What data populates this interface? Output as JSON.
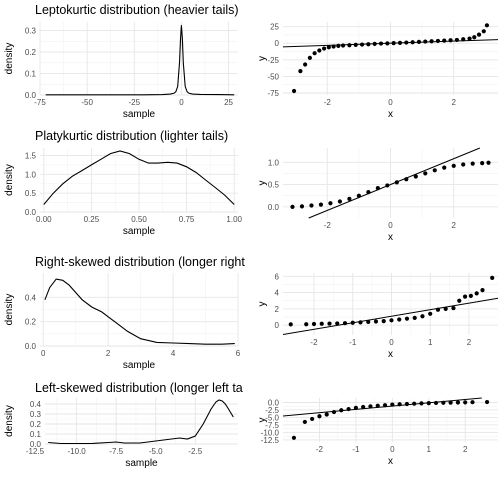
{
  "chart_data": [
    {
      "type": "line",
      "title": "Leptokurtic distribution (heavier tails)",
      "xlabel": "sample",
      "ylabel": "density",
      "xlim": [
        -75,
        30
      ],
      "ylim": [
        0,
        0.34
      ],
      "xticks": [
        -75,
        -50,
        -25,
        0,
        25
      ],
      "xticklabels": [
        "-75",
        "-50",
        "-25",
        "0",
        "25"
      ],
      "yticks": [
        0,
        0.1,
        0.2,
        0.3
      ],
      "yticklabels": [
        "0.0",
        "0.1",
        "0.2",
        "0.3"
      ],
      "grid": true,
      "series": [
        {
          "x": [
            -72,
            -60,
            -40,
            -20,
            -10,
            -6,
            -4,
            -3,
            -2,
            -1,
            -0.5,
            0,
            0.5,
            1,
            2,
            3,
            4,
            6,
            10,
            20,
            28
          ],
          "y": [
            0.001,
            0.001,
            0.001,
            0.001,
            0.002,
            0.004,
            0.008,
            0.015,
            0.04,
            0.15,
            0.26,
            0.325,
            0.26,
            0.15,
            0.04,
            0.015,
            0.008,
            0.004,
            0.003,
            0.002,
            0.001
          ]
        }
      ]
    },
    {
      "type": "scatter",
      "title": "",
      "xlabel": "x",
      "ylabel": "y",
      "xlim": [
        -3.4,
        3.4
      ],
      "ylim": [
        -78,
        32
      ],
      "xticks": [
        -2,
        0,
        2
      ],
      "xticklabels": [
        "-2",
        "0",
        "2"
      ],
      "yticks": [
        -75,
        -50,
        -25,
        0,
        25
      ],
      "yticklabels": [
        "-75",
        "-50",
        "-25",
        "0",
        "25"
      ],
      "grid": true,
      "reference_line": {
        "slope": 1.6,
        "intercept": 0
      },
      "series": [
        {
          "x": [
            -3.05,
            -2.85,
            -2.7,
            -2.55,
            -2.4,
            -2.25,
            -2.1,
            -1.95,
            -1.8,
            -1.65,
            -1.5,
            -1.3,
            -1.1,
            -0.9,
            -0.7,
            -0.5,
            -0.3,
            -0.1,
            0.1,
            0.3,
            0.5,
            0.7,
            0.9,
            1.1,
            1.3,
            1.5,
            1.7,
            1.9,
            2.1,
            2.3,
            2.5,
            2.65,
            2.8,
            2.95,
            3.05
          ],
          "y": [
            -72,
            -42,
            -32,
            -22,
            -15,
            -11,
            -8,
            -6,
            -5,
            -4,
            -3.5,
            -3,
            -2.5,
            -2,
            -1.5,
            -1,
            -0.5,
            -0.2,
            0.2,
            0.5,
            1,
            1.5,
            2,
            2.5,
            3,
            3.5,
            4,
            4.5,
            5,
            6,
            7,
            9,
            13,
            18,
            27
          ]
        }
      ]
    },
    {
      "type": "line",
      "title": "Platykurtic distribution (lighter tails)",
      "xlabel": "sample",
      "ylabel": "density",
      "xlim": [
        -0.02,
        1.02
      ],
      "ylim": [
        0,
        1.7
      ],
      "xticks": [
        0,
        0.25,
        0.5,
        0.75,
        1
      ],
      "xticklabels": [
        "0.00",
        "0.25",
        "0.50",
        "0.75",
        "1.00"
      ],
      "yticks": [
        0,
        0.5,
        1,
        1.5
      ],
      "yticklabels": [
        "0.0",
        "0.5",
        "1.0",
        "1.5"
      ],
      "grid": true,
      "series": [
        {
          "x": [
            0,
            0.05,
            0.1,
            0.15,
            0.2,
            0.25,
            0.3,
            0.35,
            0.4,
            0.45,
            0.5,
            0.55,
            0.6,
            0.65,
            0.7,
            0.75,
            0.8,
            0.85,
            0.9,
            0.95,
            1
          ],
          "y": [
            0.2,
            0.5,
            0.75,
            0.95,
            1.1,
            1.25,
            1.4,
            1.55,
            1.62,
            1.55,
            1.4,
            1.3,
            1.3,
            1.32,
            1.3,
            1.2,
            1.05,
            0.85,
            0.65,
            0.45,
            0.2
          ]
        }
      ]
    },
    {
      "type": "scatter",
      "title": "",
      "xlabel": "x",
      "ylabel": "y",
      "xlim": [
        -3.4,
        3.4
      ],
      "ylim": [
        -0.25,
        1.32
      ],
      "xticks": [
        -2,
        0,
        2
      ],
      "xticklabels": [
        "-2",
        "0",
        "2"
      ],
      "yticks": [
        0,
        0.5,
        1
      ],
      "yticklabels": [
        "0.0",
        "0.5",
        "1.0"
      ],
      "grid": true,
      "reference_line": {
        "slope": 0.29,
        "intercept": 0.5
      },
      "series": [
        {
          "x": [
            -3.1,
            -2.8,
            -2.5,
            -2.2,
            -1.9,
            -1.6,
            -1.3,
            -1.0,
            -0.7,
            -0.4,
            -0.1,
            0.2,
            0.5,
            0.8,
            1.1,
            1.4,
            1.7,
            2.0,
            2.3,
            2.6,
            2.9,
            3.1
          ],
          "y": [
            0.0,
            0.01,
            0.03,
            0.05,
            0.08,
            0.12,
            0.18,
            0.25,
            0.33,
            0.42,
            0.48,
            0.55,
            0.62,
            0.68,
            0.75,
            0.82,
            0.88,
            0.92,
            0.95,
            0.97,
            0.98,
            0.99
          ]
        }
      ]
    },
    {
      "type": "line",
      "title": "Right-skewed distribution (longer right",
      "xlabel": "sample",
      "ylabel": "density",
      "xlim": [
        -0.1,
        6
      ],
      "ylim": [
        0,
        0.6
      ],
      "xticks": [
        0,
        2,
        4,
        6
      ],
      "xticklabels": [
        "0",
        "2",
        "4",
        "6"
      ],
      "yticks": [
        0,
        0.2,
        0.4
      ],
      "yticklabels": [
        "0.0",
        "0.2",
        "0.4"
      ],
      "grid": true,
      "series": [
        {
          "x": [
            0.05,
            0.2,
            0.4,
            0.6,
            0.8,
            1.0,
            1.2,
            1.5,
            1.8,
            2.0,
            2.3,
            2.6,
            3.0,
            3.5,
            4.0,
            4.5,
            5.0,
            5.5,
            5.9
          ],
          "y": [
            0.38,
            0.48,
            0.55,
            0.54,
            0.5,
            0.44,
            0.38,
            0.32,
            0.28,
            0.24,
            0.18,
            0.12,
            0.06,
            0.03,
            0.025,
            0.02,
            0.015,
            0.015,
            0.02
          ]
        }
      ]
    },
    {
      "type": "scatter",
      "title": "",
      "xlabel": "x",
      "ylabel": "y",
      "xlim": [
        -2.8,
        2.75
      ],
      "ylim": [
        -1.2,
        6.4
      ],
      "xticks": [
        -2,
        -1,
        0,
        1,
        2
      ],
      "xticklabels": [
        "-2",
        "-1",
        "0",
        "1",
        "2"
      ],
      "yticks": [
        0,
        2,
        4,
        6
      ],
      "yticklabels": [
        "0",
        "2",
        "4",
        "6"
      ],
      "grid": true,
      "reference_line": {
        "slope": 0.8,
        "intercept": 1.1
      },
      "series": [
        {
          "x": [
            -2.6,
            -2.2,
            -2.0,
            -1.8,
            -1.6,
            -1.4,
            -1.2,
            -1.0,
            -0.8,
            -0.6,
            -0.4,
            -0.2,
            0,
            0.2,
            0.4,
            0.6,
            0.8,
            1.0,
            1.2,
            1.4,
            1.6,
            1.75,
            1.9,
            2.05,
            2.2,
            2.35,
            2.6
          ],
          "y": [
            0.1,
            0.12,
            0.15,
            0.18,
            0.2,
            0.22,
            0.25,
            0.3,
            0.35,
            0.4,
            0.45,
            0.5,
            0.6,
            0.7,
            0.8,
            0.9,
            1.1,
            1.4,
            1.9,
            2.0,
            2.1,
            3.0,
            3.5,
            3.6,
            3.9,
            4.3,
            5.8
          ]
        }
      ]
    },
    {
      "type": "line",
      "title": "Left-skewed distribution (longer left ta",
      "xlabel": "sample",
      "ylabel": "density",
      "xlim": [
        -12,
        0.2
      ],
      "ylim": [
        0,
        0.46
      ],
      "xticks": [
        -12.5,
        -10,
        -7.5,
        -5,
        -2.5
      ],
      "xticklabels": [
        "-12.5",
        "-10.0",
        "-7.5",
        "-5.0",
        "-2.5"
      ],
      "yticks": [
        0,
        0.1,
        0.2,
        0.3,
        0.4
      ],
      "yticklabels": [
        "0.0",
        "0.1",
        "0.2",
        "0.3",
        "0.4"
      ],
      "grid": true,
      "series": [
        {
          "x": [
            -11.8,
            -11,
            -10,
            -9,
            -8,
            -7.5,
            -7,
            -6,
            -5,
            -4,
            -3.5,
            -3,
            -2.5,
            -2,
            -1.5,
            -1.2,
            -1,
            -0.8,
            -0.6,
            -0.4,
            -0.1
          ],
          "y": [
            0.015,
            0.005,
            0.005,
            0.006,
            0.015,
            0.02,
            0.01,
            0.01,
            0.03,
            0.05,
            0.06,
            0.05,
            0.08,
            0.2,
            0.35,
            0.42,
            0.44,
            0.43,
            0.4,
            0.35,
            0.27
          ]
        }
      ]
    },
    {
      "type": "scatter",
      "title": "",
      "xlabel": "x",
      "ylabel": "y",
      "xlim": [
        -3.0,
        2.9
      ],
      "ylim": [
        -13.2,
        1.5
      ],
      "xticks": [
        -2,
        -1,
        0,
        1,
        2
      ],
      "xticklabels": [
        "-2",
        "-1",
        "0",
        "1",
        "2"
      ],
      "yticks": [
        -12.5,
        -10,
        -7.5,
        -5,
        -2.5,
        0
      ],
      "yticklabels": [
        "-12.5",
        "-10.0",
        "-7.5",
        "-5.0",
        "-2.5",
        "0.0"
      ],
      "grid": true,
      "reference_line": {
        "slope": 1.1,
        "intercept": -1.2
      },
      "series": [
        {
          "x": [
            -2.7,
            -2.4,
            -2.2,
            -2.0,
            -1.8,
            -1.6,
            -1.4,
            -1.2,
            -1.0,
            -0.8,
            -0.6,
            -0.4,
            -0.2,
            0,
            0.2,
            0.4,
            0.6,
            0.8,
            1.0,
            1.2,
            1.4,
            1.6,
            1.8,
            2.0,
            2.2,
            2.6
          ],
          "y": [
            -11.8,
            -6.5,
            -5.5,
            -4.6,
            -4.0,
            -3.2,
            -2.6,
            -2.2,
            -1.8,
            -1.5,
            -1.3,
            -1.1,
            -0.9,
            -0.7,
            -0.6,
            -0.5,
            -0.4,
            -0.3,
            -0.2,
            -0.15,
            -0.1,
            -0.05,
            0,
            0.05,
            0.1,
            0.15
          ]
        }
      ]
    }
  ]
}
